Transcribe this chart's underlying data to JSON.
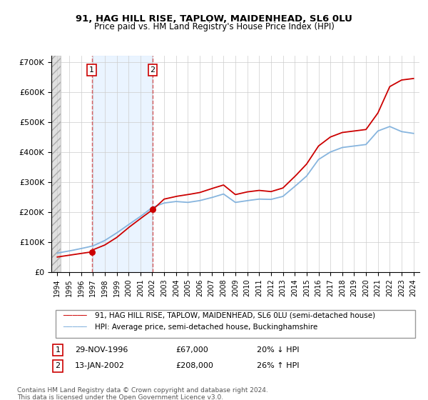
{
  "title": "91, HAG HILL RISE, TAPLOW, MAIDENHEAD, SL6 0LU",
  "subtitle": "Price paid vs. HM Land Registry's House Price Index (HPI)",
  "legend_line1": "91, HAG HILL RISE, TAPLOW, MAIDENHEAD, SL6 0LU (semi-detached house)",
  "legend_line2": "HPI: Average price, semi-detached house, Buckinghamshire",
  "footer": "Contains HM Land Registry data © Crown copyright and database right 2024.\nThis data is licensed under the Open Government Licence v3.0.",
  "sale1_date": "29-NOV-1996",
  "sale1_price": "£67,000",
  "sale1_hpi": "20% ↓ HPI",
  "sale2_date": "13-JAN-2002",
  "sale2_price": "£208,000",
  "sale2_hpi": "26% ↑ HPI",
  "sale1_x": 1996.91,
  "sale1_y": 67000,
  "sale2_x": 2002.04,
  "sale2_y": 208000,
  "hpi_color": "#7aaddb",
  "price_color": "#cc0000",
  "sale1_vline_x": 1996.91,
  "sale2_vline_x": 2002.04,
  "ylim": [
    0,
    720000
  ],
  "xlim": [
    1993.5,
    2024.5
  ],
  "yticks": [
    0,
    100000,
    200000,
    300000,
    400000,
    500000,
    600000,
    700000
  ],
  "ytick_labels": [
    "£0",
    "£100K",
    "£200K",
    "£300K",
    "£400K",
    "£500K",
    "£600K",
    "£700K"
  ],
  "xticks": [
    1994,
    1995,
    1996,
    1997,
    1998,
    1999,
    2000,
    2001,
    2002,
    2003,
    2004,
    2005,
    2006,
    2007,
    2008,
    2009,
    2010,
    2011,
    2012,
    2013,
    2014,
    2015,
    2016,
    2017,
    2018,
    2019,
    2020,
    2021,
    2022,
    2023,
    2024
  ],
  "hpi_anchors_x": [
    1994,
    1995,
    1996,
    1997,
    1998,
    1999,
    2000,
    2001,
    2002,
    2003,
    2004,
    2005,
    2006,
    2007,
    2008,
    2009,
    2010,
    2011,
    2012,
    2013,
    2014,
    2015,
    2016,
    2017,
    2018,
    2019,
    2020,
    2021,
    2022,
    2023,
    2024
  ],
  "hpi_anchors_y": [
    63000,
    70000,
    78000,
    87000,
    105000,
    130000,
    158000,
    185000,
    215000,
    230000,
    235000,
    232000,
    238000,
    248000,
    260000,
    232000,
    238000,
    243000,
    242000,
    252000,
    285000,
    320000,
    375000,
    400000,
    415000,
    420000,
    425000,
    470000,
    485000,
    468000,
    462000
  ],
  "price_anchors_x": [
    1994,
    1995,
    1996,
    1996.91,
    1997,
    1998,
    1999,
    2000,
    2001,
    2002.04,
    2003,
    2004,
    2005,
    2006,
    2007,
    2008,
    2009,
    2010,
    2011,
    2012,
    2013,
    2014,
    2015,
    2016,
    2017,
    2018,
    2019,
    2020,
    2021,
    2022,
    2023,
    2024
  ],
  "price_anchors_y": [
    50000,
    56000,
    62000,
    67000,
    74000,
    90000,
    115000,
    148000,
    178000,
    208000,
    243000,
    252000,
    258000,
    265000,
    278000,
    290000,
    258000,
    267000,
    272000,
    268000,
    280000,
    318000,
    360000,
    420000,
    450000,
    465000,
    470000,
    475000,
    530000,
    618000,
    640000,
    645000
  ]
}
